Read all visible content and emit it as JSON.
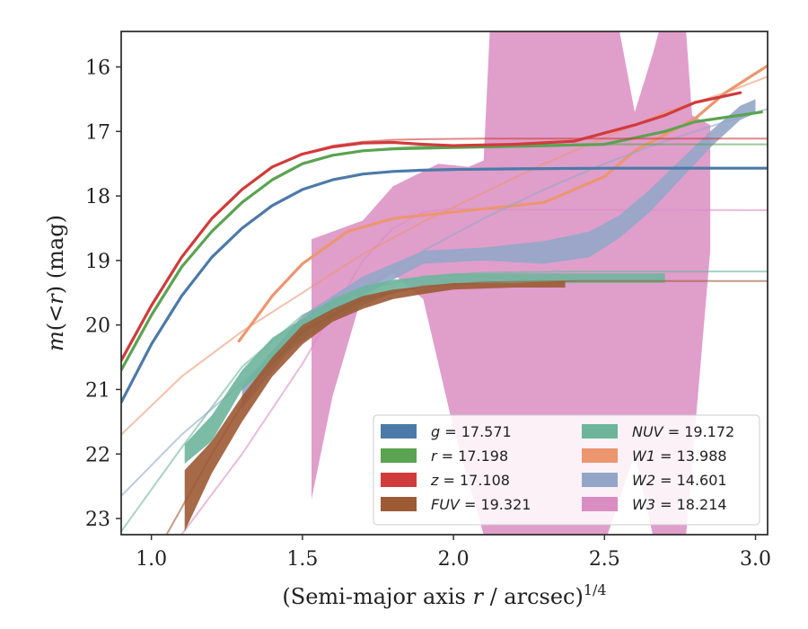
{
  "chart_data": {
    "type": "line",
    "title": "",
    "xlabel_main": "(Semi-major axis ",
    "xlabel_var": "r",
    "xlabel_rest": " / arcsec)",
    "xlabel_sup": "1/4",
    "ylabel_var": "m",
    "ylabel_open": "(<",
    "ylabel_var2": "r",
    "ylabel_close": ")",
    "ylabel_unit": " (mag)",
    "xlim": [
      0.9,
      3.04
    ],
    "ylim": [
      23.25,
      15.45
    ],
    "y_inverted": true,
    "x_ticks": [
      1.0,
      1.5,
      2.0,
      2.5,
      3.0
    ],
    "x_tick_labels": [
      "1.0",
      "1.5",
      "2.0",
      "2.5",
      "3.0"
    ],
    "y_ticks": [
      16,
      17,
      18,
      19,
      20,
      21,
      22,
      23
    ],
    "y_tick_labels": [
      "16",
      "17",
      "18",
      "19",
      "20",
      "21",
      "22",
      "23"
    ],
    "grid": false,
    "legend_position": "lower-right",
    "legend": [
      {
        "band": "g",
        "value": "17.571",
        "color": "#4c7aa8"
      },
      {
        "band": "r",
        "value": "17.198",
        "color": "#5aa351"
      },
      {
        "band": "z",
        "value": "17.108",
        "color": "#d13b3b"
      },
      {
        "band": "FUV",
        "value": "19.321",
        "color": "#9c5a35"
      },
      {
        "band": "NUV",
        "value": "19.172",
        "color": "#6eb59c"
      },
      {
        "band": "W1",
        "value": "13.988",
        "color": "#ec9670"
      },
      {
        "band": "W2",
        "value": "14.601",
        "color": "#94a6c8"
      },
      {
        "band": "W3",
        "value": "18.214",
        "color": "#da8dc2"
      }
    ],
    "series": [
      {
        "band": "W3",
        "color": "#da8dc2",
        "band_upper": [
          [
            1.53,
            18.67
          ],
          [
            1.7,
            18.38
          ],
          [
            1.8,
            17.85
          ],
          [
            1.95,
            17.5
          ],
          [
            2.05,
            17.55
          ],
          [
            2.1,
            17.45
          ],
          [
            2.12,
            15.45
          ],
          [
            2.55,
            15.45
          ],
          [
            2.6,
            16.7
          ],
          [
            2.62,
            16.4
          ],
          [
            2.66,
            15.8
          ],
          [
            2.68,
            15.45
          ],
          [
            2.77,
            15.45
          ],
          [
            2.79,
            16.75
          ],
          [
            2.85,
            16.9
          ]
        ],
        "band_lower": [
          [
            2.85,
            18.85
          ],
          [
            2.77,
            23.25
          ],
          [
            2.66,
            23.25
          ],
          [
            2.6,
            22.0
          ],
          [
            2.51,
            23.25
          ],
          [
            2.1,
            23.25
          ],
          [
            2.0,
            21.6
          ],
          [
            1.9,
            19.6
          ],
          [
            1.8,
            19.2
          ],
          [
            1.7,
            19.5
          ],
          [
            1.6,
            21.1
          ],
          [
            1.53,
            22.7
          ]
        ],
        "fit": [
          [
            1.1,
            23.25
          ],
          [
            1.3,
            22.0
          ],
          [
            1.5,
            20.6
          ],
          [
            1.7,
            19.0
          ],
          [
            1.8,
            18.5
          ],
          [
            1.9,
            18.25
          ],
          [
            2.0,
            18.2
          ],
          [
            2.2,
            18.21
          ],
          [
            3.04,
            18.22
          ]
        ]
      },
      {
        "band": "W1",
        "color": "#ec9670",
        "data": [
          [
            1.29,
            20.25
          ],
          [
            1.4,
            19.55
          ],
          [
            1.5,
            19.05
          ],
          [
            1.65,
            18.55
          ],
          [
            1.8,
            18.35
          ],
          [
            2.0,
            18.25
          ],
          [
            2.3,
            18.1
          ],
          [
            2.5,
            17.7
          ],
          [
            2.6,
            17.3
          ],
          [
            2.8,
            16.8
          ],
          [
            2.9,
            16.4
          ],
          [
            3.04,
            15.98
          ]
        ],
        "fit": [
          [
            0.9,
            21.7
          ],
          [
            1.1,
            20.8
          ],
          [
            1.3,
            20.1
          ],
          [
            1.5,
            19.5
          ],
          [
            1.7,
            18.9
          ],
          [
            1.9,
            18.4
          ],
          [
            2.1,
            17.95
          ],
          [
            2.3,
            17.5
          ],
          [
            2.5,
            17.1
          ],
          [
            2.7,
            16.7
          ],
          [
            2.9,
            16.4
          ],
          [
            3.04,
            16.15
          ]
        ]
      },
      {
        "band": "W2",
        "color": "#94a6c8",
        "band_upper": [
          [
            1.3,
            20.95
          ],
          [
            1.5,
            19.85
          ],
          [
            1.7,
            19.25
          ],
          [
            1.9,
            18.85
          ],
          [
            2.1,
            18.8
          ],
          [
            2.3,
            18.7
          ],
          [
            2.45,
            18.55
          ],
          [
            2.55,
            18.3
          ],
          [
            2.65,
            17.9
          ],
          [
            2.75,
            17.45
          ],
          [
            2.85,
            17.0
          ],
          [
            2.95,
            16.6
          ],
          [
            3.0,
            16.5
          ]
        ],
        "band_lower": [
          [
            3.0,
            16.72
          ],
          [
            2.95,
            16.82
          ],
          [
            2.85,
            17.25
          ],
          [
            2.75,
            17.75
          ],
          [
            2.65,
            18.25
          ],
          [
            2.55,
            18.65
          ],
          [
            2.45,
            18.95
          ],
          [
            2.3,
            19.05
          ],
          [
            2.1,
            19.0
          ],
          [
            1.9,
            19.05
          ],
          [
            1.7,
            19.55
          ],
          [
            1.5,
            20.15
          ],
          [
            1.3,
            21.3
          ]
        ],
        "fit": [
          [
            0.9,
            22.65
          ],
          [
            1.1,
            21.7
          ],
          [
            1.3,
            20.9
          ],
          [
            1.5,
            20.1
          ],
          [
            1.7,
            19.45
          ],
          [
            1.9,
            18.85
          ],
          [
            2.1,
            18.35
          ],
          [
            2.3,
            17.9
          ],
          [
            2.5,
            17.5
          ],
          [
            2.7,
            17.15
          ],
          [
            2.9,
            16.85
          ],
          [
            3.04,
            16.65
          ]
        ]
      },
      {
        "band": "NUV",
        "color": "#6eb59c",
        "band_upper": [
          [
            1.11,
            21.85
          ],
          [
            1.2,
            21.4
          ],
          [
            1.3,
            20.7
          ],
          [
            1.4,
            20.2
          ],
          [
            1.5,
            19.9
          ],
          [
            1.6,
            19.6
          ],
          [
            1.7,
            19.4
          ],
          [
            1.8,
            19.3
          ],
          [
            1.9,
            19.25
          ],
          [
            2.0,
            19.2
          ],
          [
            2.2,
            19.2
          ],
          [
            2.4,
            19.2
          ],
          [
            2.7,
            19.2
          ]
        ],
        "band_lower": [
          [
            2.7,
            19.35
          ],
          [
            2.4,
            19.35
          ],
          [
            2.2,
            19.35
          ],
          [
            2.0,
            19.35
          ],
          [
            1.9,
            19.4
          ],
          [
            1.8,
            19.5
          ],
          [
            1.7,
            19.7
          ],
          [
            1.6,
            19.9
          ],
          [
            1.5,
            20.25
          ],
          [
            1.4,
            20.6
          ],
          [
            1.3,
            21.0
          ],
          [
            1.2,
            21.8
          ],
          [
            1.11,
            22.15
          ]
        ],
        "fit": [
          [
            0.9,
            23.2
          ],
          [
            1.1,
            21.9
          ],
          [
            1.3,
            20.65
          ],
          [
            1.5,
            19.85
          ],
          [
            1.7,
            19.45
          ],
          [
            1.9,
            19.25
          ],
          [
            2.1,
            19.19
          ],
          [
            2.4,
            19.17
          ],
          [
            3.04,
            19.17
          ]
        ]
      },
      {
        "band": "FUV",
        "color": "#9c5a35",
        "band_upper": [
          [
            1.11,
            22.25
          ],
          [
            1.2,
            21.8
          ],
          [
            1.3,
            21.1
          ],
          [
            1.4,
            20.5
          ],
          [
            1.5,
            20.0
          ],
          [
            1.6,
            19.75
          ],
          [
            1.7,
            19.55
          ],
          [
            1.8,
            19.45
          ],
          [
            1.9,
            19.4
          ],
          [
            2.0,
            19.35
          ],
          [
            2.2,
            19.35
          ],
          [
            2.37,
            19.32
          ]
        ],
        "band_lower": [
          [
            2.37,
            19.42
          ],
          [
            2.2,
            19.42
          ],
          [
            2.0,
            19.45
          ],
          [
            1.9,
            19.52
          ],
          [
            1.8,
            19.6
          ],
          [
            1.7,
            19.75
          ],
          [
            1.6,
            19.95
          ],
          [
            1.5,
            20.3
          ],
          [
            1.4,
            20.8
          ],
          [
            1.3,
            21.5
          ],
          [
            1.2,
            22.3
          ],
          [
            1.11,
            23.2
          ]
        ],
        "fit": [
          [
            1.05,
            23.25
          ],
          [
            1.2,
            22.0
          ],
          [
            1.35,
            20.85
          ],
          [
            1.5,
            20.1
          ],
          [
            1.7,
            19.6
          ],
          [
            1.9,
            19.4
          ],
          [
            2.1,
            19.34
          ],
          [
            2.4,
            19.32
          ],
          [
            3.04,
            19.32
          ]
        ]
      },
      {
        "band": "g",
        "color": "#4c7aa8",
        "data": [
          [
            0.9,
            21.2
          ],
          [
            1.0,
            20.3
          ],
          [
            1.1,
            19.55
          ],
          [
            1.2,
            18.95
          ],
          [
            1.3,
            18.5
          ],
          [
            1.4,
            18.15
          ],
          [
            1.5,
            17.9
          ],
          [
            1.6,
            17.75
          ],
          [
            1.7,
            17.66
          ],
          [
            1.8,
            17.62
          ],
          [
            1.9,
            17.6
          ],
          [
            2.0,
            17.59
          ],
          [
            2.2,
            17.58
          ],
          [
            2.5,
            17.57
          ],
          [
            3.04,
            17.57
          ]
        ],
        "fit": [
          [
            0.9,
            21.2
          ],
          [
            1.0,
            20.3
          ],
          [
            1.1,
            19.55
          ],
          [
            1.2,
            18.95
          ],
          [
            1.3,
            18.5
          ],
          [
            1.4,
            18.15
          ],
          [
            1.5,
            17.9
          ],
          [
            1.6,
            17.75
          ],
          [
            1.7,
            17.66
          ],
          [
            1.8,
            17.62
          ],
          [
            1.9,
            17.6
          ],
          [
            2.0,
            17.59
          ],
          [
            2.2,
            17.58
          ],
          [
            2.5,
            17.57
          ],
          [
            3.04,
            17.57
          ]
        ]
      },
      {
        "band": "r",
        "color": "#5aa351",
        "data": [
          [
            0.9,
            20.7
          ],
          [
            1.0,
            19.85
          ],
          [
            1.1,
            19.1
          ],
          [
            1.2,
            18.55
          ],
          [
            1.3,
            18.1
          ],
          [
            1.4,
            17.75
          ],
          [
            1.5,
            17.5
          ],
          [
            1.6,
            17.37
          ],
          [
            1.7,
            17.3
          ],
          [
            1.8,
            17.27
          ],
          [
            1.9,
            17.26
          ],
          [
            2.0,
            17.25
          ],
          [
            2.3,
            17.22
          ],
          [
            2.5,
            17.2
          ],
          [
            2.7,
            17.0
          ],
          [
            2.8,
            16.85
          ],
          [
            3.02,
            16.7
          ]
        ],
        "fit": [
          [
            0.9,
            20.7
          ],
          [
            1.0,
            19.85
          ],
          [
            1.1,
            19.1
          ],
          [
            1.2,
            18.55
          ],
          [
            1.3,
            18.1
          ],
          [
            1.4,
            17.75
          ],
          [
            1.5,
            17.5
          ],
          [
            1.6,
            17.37
          ],
          [
            1.7,
            17.3
          ],
          [
            1.8,
            17.26
          ],
          [
            1.9,
            17.23
          ],
          [
            2.1,
            17.21
          ],
          [
            2.5,
            17.2
          ],
          [
            3.04,
            17.2
          ]
        ]
      },
      {
        "band": "z",
        "color": "#d13b3b",
        "data": [
          [
            0.9,
            20.55
          ],
          [
            1.0,
            19.7
          ],
          [
            1.1,
            18.95
          ],
          [
            1.2,
            18.35
          ],
          [
            1.3,
            17.9
          ],
          [
            1.4,
            17.55
          ],
          [
            1.5,
            17.35
          ],
          [
            1.6,
            17.24
          ],
          [
            1.7,
            17.18
          ],
          [
            1.8,
            17.17
          ],
          [
            1.9,
            17.2
          ],
          [
            2.0,
            17.22
          ],
          [
            2.2,
            17.2
          ],
          [
            2.4,
            17.15
          ],
          [
            2.6,
            16.9
          ],
          [
            2.7,
            16.75
          ],
          [
            2.8,
            16.55
          ],
          [
            2.95,
            16.4
          ]
        ],
        "fit": [
          [
            0.9,
            20.55
          ],
          [
            1.0,
            19.7
          ],
          [
            1.1,
            18.95
          ],
          [
            1.2,
            18.35
          ],
          [
            1.3,
            17.9
          ],
          [
            1.4,
            17.55
          ],
          [
            1.5,
            17.35
          ],
          [
            1.6,
            17.22
          ],
          [
            1.7,
            17.16
          ],
          [
            1.8,
            17.13
          ],
          [
            1.9,
            17.12
          ],
          [
            2.1,
            17.11
          ],
          [
            2.5,
            17.11
          ],
          [
            3.04,
            17.11
          ]
        ]
      }
    ]
  }
}
